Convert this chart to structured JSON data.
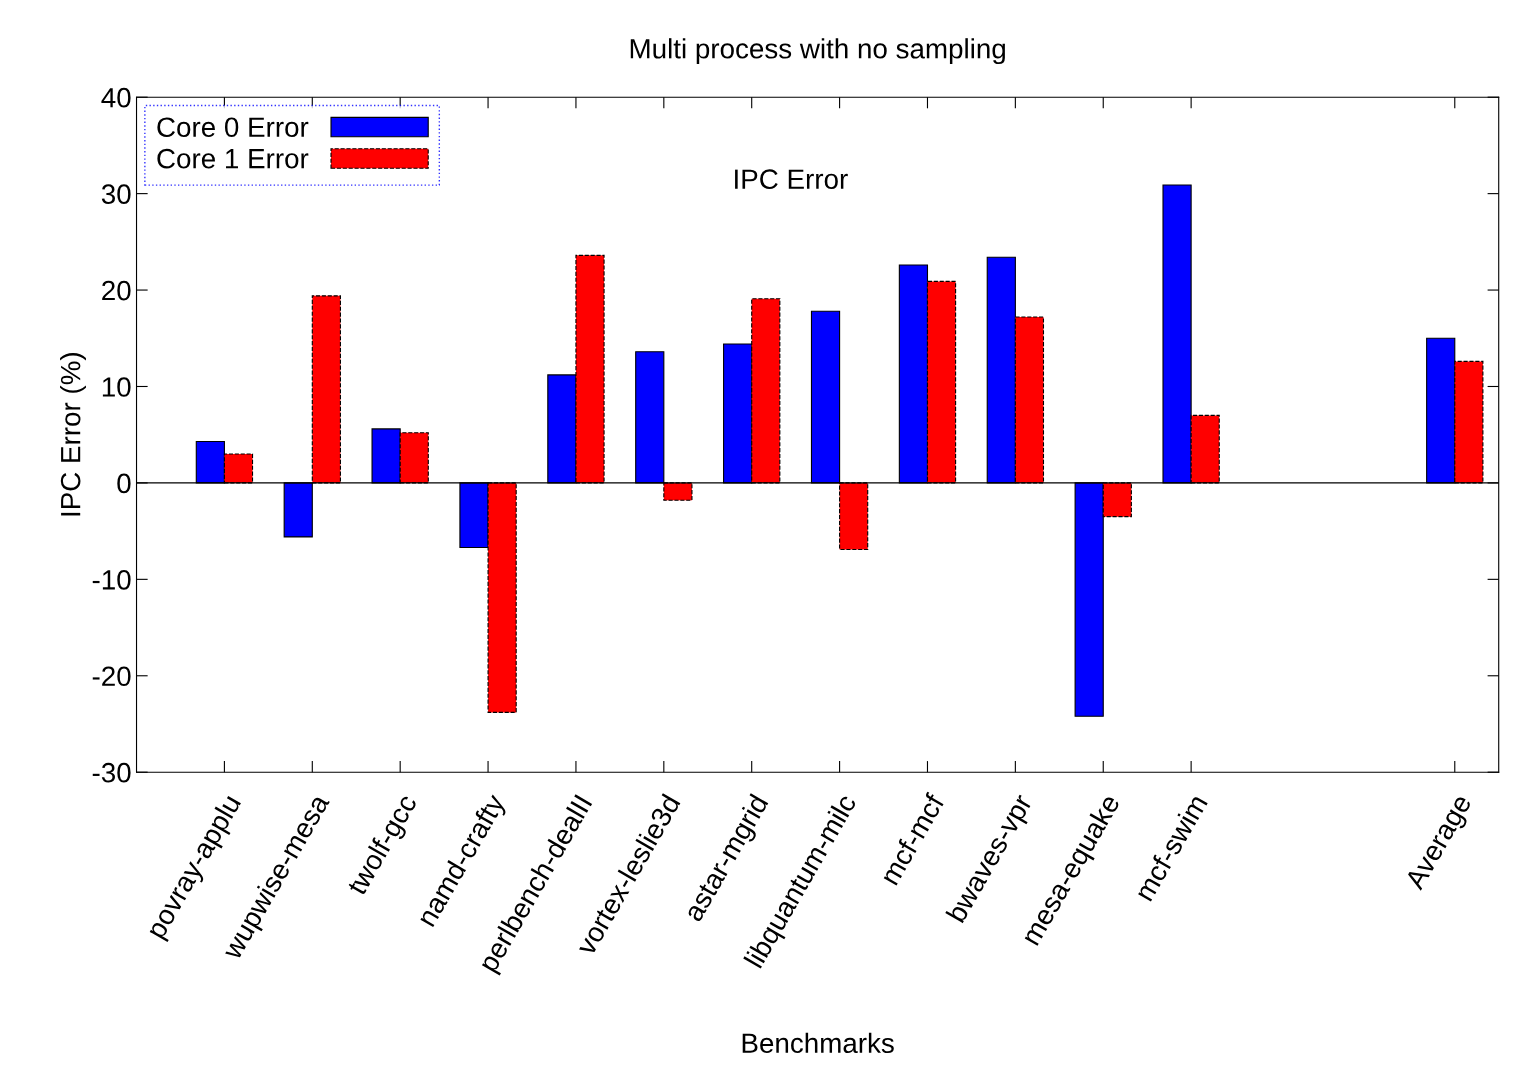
{
  "chart_data": {
    "type": "bar",
    "title": "Multi process with no sampling",
    "xlabel": "Benchmarks",
    "ylabel": "IPC Error (%)",
    "annotations": [
      "IPC Error"
    ],
    "categories": [
      "povray-applu",
      "wupwise-mesa",
      "twolf-gcc",
      "namd-crafty",
      "perlbench-dealII",
      "vortex-leslie3d",
      "astar-mgrid",
      "libquantum-milc",
      "mcf-mcf",
      "bwaves-vpr",
      "mesa-equake",
      "mcf-swim",
      null,
      null,
      "Average"
    ],
    "series": [
      {
        "name": "Core 0 Error",
        "color": "#0000ff",
        "values": [
          4.3,
          -5.6,
          5.6,
          -6.7,
          11.2,
          13.6,
          14.4,
          17.8,
          22.6,
          23.4,
          -24.2,
          30.9,
          null,
          null,
          15.0
        ]
      },
      {
        "name": "Core 1 Error",
        "color": "#ff0000",
        "line_style": "dashed",
        "values": [
          3.0,
          19.4,
          5.2,
          -23.8,
          23.6,
          -1.8,
          19.1,
          -6.9,
          20.9,
          17.2,
          -3.5,
          7.0,
          null,
          null,
          12.6
        ]
      }
    ],
    "ylim": [
      -30,
      40
    ],
    "yticks": [
      -30,
      -20,
      -10,
      0,
      10,
      20,
      30,
      40
    ],
    "grid": false,
    "legend": "top left",
    "ref_lines": [
      {
        "axis": "y",
        "value": 0,
        "color": "#000000"
      }
    ]
  }
}
